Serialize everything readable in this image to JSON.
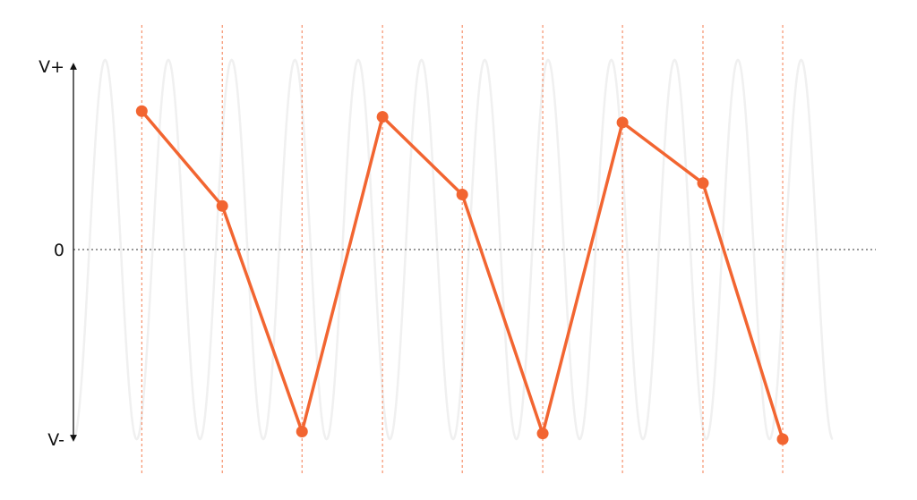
{
  "chart_data": {
    "type": "line",
    "ylim": [
      -1,
      1
    ],
    "xlim": [
      0,
      1
    ],
    "y_tick_labels": {
      "top": "V+",
      "zero": "0",
      "bottom": "V-"
    },
    "underlying_signal": {
      "shape": "sine",
      "cycles": 12,
      "amplitude": 1,
      "color": "#f0f0f0"
    },
    "sample_times": [
      0.09,
      0.196,
      0.301,
      0.407,
      0.512,
      0.618,
      0.723,
      0.829,
      0.934
    ],
    "series": [
      {
        "values": [
          0.73,
          0.23,
          -0.96,
          0.7,
          0.29,
          -0.97,
          0.67,
          0.35,
          -1.0
        ],
        "color": "#f26531"
      }
    ],
    "grid": false,
    "zero_line": true,
    "sample_guide_color": "#f26531"
  }
}
